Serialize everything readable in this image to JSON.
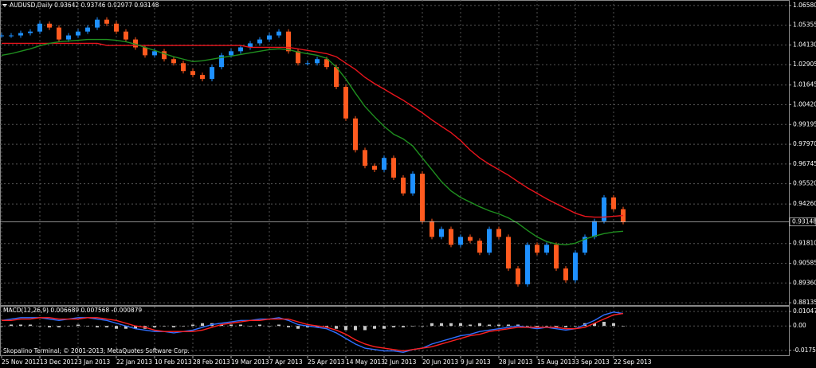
{
  "chart_data": [
    {
      "type": "price",
      "title": "AUDUSD,Daily  0.93642 0.93746 0.92977 0.93148",
      "categories": [
        "25 Nov 2012",
        null,
        null,
        null,
        "13 Dec 2012",
        null,
        null,
        null,
        "3 Jan 2013",
        null,
        null,
        null,
        "22 Jan 2013",
        null,
        null,
        null,
        "10 Feb 2013",
        null,
        null,
        null,
        "28 Feb 2013",
        null,
        null,
        null,
        "19 Mar 2013",
        null,
        null,
        null,
        "7 Apr 2013",
        null,
        null,
        null,
        "25 Apr 2013",
        null,
        null,
        null,
        "14 May 2013",
        null,
        null,
        null,
        "2 Jun 2013",
        null,
        null,
        null,
        "20 Jun 2013",
        null,
        null,
        null,
        "9 Jul 2013",
        null,
        null,
        null,
        "28 Jul 2013",
        null,
        null,
        null,
        "15 Aug 2013",
        null,
        null,
        null,
        "3 Sep 2013",
        null,
        null,
        null,
        "22 Sep 2013",
        null
      ],
      "series": [
        {
          "type": "candle",
          "color": "#1e90ff",
          "down_color": "#ff5a1f",
          "values": [
            1.0472,
            1.0472,
            1.0487,
            1.0496,
            1.0545,
            1.0521,
            1.0447,
            1.0472,
            1.0496,
            1.0521,
            1.057,
            1.0545,
            1.0496,
            1.0447,
            1.0398,
            1.0349,
            1.0374,
            1.0325,
            1.03,
            1.0251,
            1.0227,
            1.0202,
            1.0276,
            1.0349,
            1.0374,
            1.0398,
            1.0423,
            1.0447,
            1.0472,
            1.0496,
            1.0374,
            1.03,
            1.03,
            1.0325,
            1.0276,
            1.0153,
            0.9957,
            0.9761,
            0.9663,
            0.9639,
            0.9712,
            0.959,
            0.9492,
            0.9614,
            0.932,
            0.9222,
            0.9271,
            0.9173,
            0.9222,
            0.9198,
            0.9124,
            0.9271,
            0.9222,
            0.9026,
            0.8928,
            0.9173,
            0.9124,
            0.9173,
            0.9026,
            0.8953,
            0.9124,
            0.9222,
            0.932,
            0.9467,
            0.9394,
            0.9315
          ]
        },
        {
          "type": "line",
          "color": "#e8141c",
          "values": [
            1.0423,
            1.0423,
            1.0423,
            1.0423,
            1.0423,
            1.0423,
            1.0423,
            1.0423,
            1.0423,
            1.0423,
            1.0423,
            1.041,
            1.041,
            1.041,
            1.041,
            1.041,
            1.041,
            1.041,
            1.041,
            1.041,
            1.041,
            1.041,
            1.041,
            1.041,
            1.041,
            1.041,
            1.0398,
            1.0398,
            1.0398,
            1.0398,
            1.0398,
            1.0389,
            1.0379,
            1.0369,
            1.0359,
            1.034,
            1.03,
            1.0261,
            1.0212,
            1.0173,
            1.0139,
            1.0104,
            1.007,
            1.0031,
            0.9992,
            0.9948,
            0.9908,
            0.9869,
            0.982,
            0.9761,
            0.9712,
            0.9673,
            0.9639,
            0.9605,
            0.9565,
            0.9526,
            0.9492,
            0.9458,
            0.9428,
            0.9399,
            0.9369,
            0.935,
            0.9345,
            0.9345,
            0.935,
            0.9355
          ]
        },
        {
          "type": "line",
          "color": "#1f8f1f",
          "values": [
            1.0349,
            1.0359,
            1.0374,
            1.0389,
            1.0408,
            1.0423,
            1.0433,
            1.0438,
            1.0442,
            1.0447,
            1.0447,
            1.0447,
            1.0442,
            1.0433,
            1.0418,
            1.0398,
            1.0379,
            1.0359,
            1.034,
            1.0325,
            1.031,
            1.0315,
            1.0325,
            1.0335,
            1.0344,
            1.0354,
            1.0364,
            1.0374,
            1.0384,
            1.0389,
            1.0384,
            1.0369,
            1.0359,
            1.0349,
            1.033,
            1.0276,
            1.0202,
            1.0114,
            1.0031,
            0.9967,
            0.9908,
            0.9859,
            0.983,
            0.9786,
            0.9712,
            0.9639,
            0.9565,
            0.9507,
            0.9467,
            0.9438,
            0.9409,
            0.9384,
            0.9365,
            0.934,
            0.9306,
            0.9262,
            0.9222,
            0.9193,
            0.9178,
            0.9173,
            0.9183,
            0.9208,
            0.9227,
            0.9242,
            0.9252,
            0.9257
          ]
        }
      ],
      "price_line": 0.93148,
      "ylim": [
        0.8799,
        1.0692
      ],
      "yticks": [
        {
          "value": 1.0658,
          "label": "1.06580"
        },
        1.05355,
        {
          "value": 1.0413,
          "label": "1.04130"
        },
        1.02905,
        1.01645,
        {
          "value": 1.0042,
          "label": "1.00420"
        },
        0.99195,
        {
          "value": 0.9797,
          "label": "0.97970"
        },
        0.96745,
        {
          "value": 0.9552,
          "label": "0.95520"
        },
        {
          "value": 0.9426,
          "label": "0.94260"
        },
        {
          "value": 0.9181,
          "label": "0.91810"
        },
        0.90585,
        {
          "value": 0.8936,
          "label": "0.89360"
        },
        0.88135
      ],
      "grid": true
    },
    {
      "type": "macd",
      "title": "MACD(12,26,9) 0.006689 0.007568 -0.000879",
      "watermark": "Skopalino Terminal, © 2001-2013, MetaQuotes Software Corp.",
      "series": [
        {
          "type": "bar",
          "color": "#c8c8c8",
          "values": [
            0,
            0.001,
            0.001,
            0.001,
            0,
            -0.001,
            -0.001,
            0,
            0.001,
            0,
            -0.001,
            -0.001,
            -0.002,
            -0.002,
            -0.002,
            -0.002,
            -0.001,
            0,
            -0.001,
            0,
            0.001,
            0.002,
            0.002,
            0.001,
            0.001,
            0.001,
            0,
            0.001,
            0,
            0.001,
            -0.001,
            -0.002,
            -0.001,
            -0.001,
            -0.001,
            -0.002,
            -0.003,
            -0.003,
            -0.003,
            -0.002,
            -0.002,
            -0.001,
            -0.001,
            0,
            0,
            0.002,
            0.002,
            0.002,
            0.002,
            0.001,
            0.002,
            0.001,
            0.001,
            0.001,
            0.001,
            0,
            -0.001,
            0,
            -0.001,
            -0.001,
            0,
            0.002,
            0.002,
            0.003,
            0.002,
            0
          ]
        },
        {
          "type": "line",
          "color": "#2f6fff",
          "values": [
            0.004,
            0.005,
            0.006,
            0.006,
            0.006,
            0.005,
            0.004,
            0.005,
            0.006,
            0.006,
            0.005,
            0.004,
            0.002,
            0.0,
            -0.002,
            -0.003,
            -0.004,
            -0.004,
            -0.005,
            -0.004,
            -0.003,
            -0.001,
            0.001,
            0.002,
            0.003,
            0.004,
            0.004,
            0.005,
            0.005,
            0.006,
            0.004,
            0.001,
            0.0,
            -0.001,
            -0.002,
            -0.005,
            -0.009,
            -0.013,
            -0.016,
            -0.017,
            -0.018,
            -0.018,
            -0.019,
            -0.017,
            -0.016,
            -0.013,
            -0.011,
            -0.009,
            -0.007,
            -0.006,
            -0.004,
            -0.003,
            -0.002,
            -0.001,
            0.0,
            -0.001,
            -0.002,
            -0.001,
            -0.002,
            -0.003,
            -0.002,
            0.001,
            0.004,
            0.008,
            0.01,
            0.009
          ]
        },
        {
          "type": "line",
          "color": "#ff2020",
          "values": [
            0.004,
            0.004,
            0.005,
            0.005,
            0.006,
            0.006,
            0.005,
            0.005,
            0.005,
            0.006,
            0.006,
            0.005,
            0.004,
            0.002,
            0.0,
            -0.001,
            -0.003,
            -0.004,
            -0.004,
            -0.004,
            -0.004,
            -0.003,
            -0.001,
            0.001,
            0.002,
            0.003,
            0.004,
            0.004,
            0.005,
            0.005,
            0.005,
            0.003,
            0.001,
            0.0,
            -0.001,
            -0.003,
            -0.006,
            -0.01,
            -0.013,
            -0.015,
            -0.016,
            -0.017,
            -0.018,
            -0.017,
            -0.016,
            -0.015,
            -0.013,
            -0.011,
            -0.009,
            -0.007,
            -0.006,
            -0.004,
            -0.003,
            -0.002,
            -0.001,
            -0.001,
            -0.001,
            -0.001,
            -0.001,
            -0.002,
            -0.002,
            -0.001,
            0.002,
            0.005,
            0.008,
            0.009
          ]
        }
      ],
      "ylim": [
        -0.0217,
        0.0145
      ],
      "yticks": [
        0.010475,
        {
          "value": 0,
          "label": "0.00"
        },
        -0.017585
      ]
    }
  ]
}
